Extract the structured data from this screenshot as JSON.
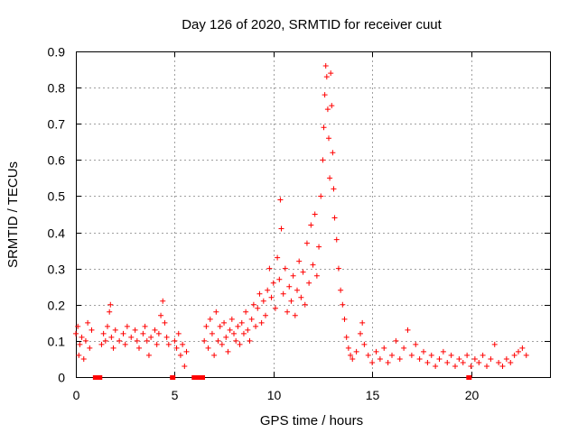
{
  "chart_data": {
    "type": "scatter",
    "title": "Day 126 of 2020, SRMTID for receiver cuut",
    "xlabel": "GPS time / hours",
    "ylabel": "SRMTID / TECUs",
    "xlim": [
      0,
      24
    ],
    "ylim": [
      0,
      0.9
    ],
    "x_ticks": [
      0,
      5,
      10,
      15,
      20
    ],
    "y_ticks": [
      0,
      0.1,
      0.2,
      0.3,
      0.4,
      0.5,
      0.6,
      0.7,
      0.8,
      0.9
    ],
    "x_tick_labels": [
      "0",
      "5",
      "10",
      "15",
      "20"
    ],
    "y_tick_labels": [
      "0",
      "0.1",
      "0.2",
      "0.3",
      "0.4",
      "0.5",
      "0.6",
      "0.7",
      "0.8",
      "0.9"
    ],
    "grid": true,
    "marker": "+",
    "color": "#ff0000",
    "series": [
      {
        "name": "SRMTID",
        "points": [
          [
            0.0,
            0.12
          ],
          [
            0.1,
            0.14
          ],
          [
            0.15,
            0.06
          ],
          [
            0.2,
            0.09
          ],
          [
            0.3,
            0.11
          ],
          [
            0.4,
            0.05
          ],
          [
            0.5,
            0.1
          ],
          [
            0.6,
            0.15
          ],
          [
            0.7,
            0.08
          ],
          [
            0.8,
            0.13
          ],
          [
            1.3,
            0.09
          ],
          [
            1.4,
            0.12
          ],
          [
            1.5,
            0.1
          ],
          [
            1.6,
            0.14
          ],
          [
            1.7,
            0.18
          ],
          [
            1.75,
            0.2
          ],
          [
            1.8,
            0.11
          ],
          [
            1.9,
            0.08
          ],
          [
            2.0,
            0.13
          ],
          [
            2.2,
            0.1
          ],
          [
            2.4,
            0.12
          ],
          [
            2.5,
            0.09
          ],
          [
            2.6,
            0.14
          ],
          [
            2.8,
            0.11
          ],
          [
            3.0,
            0.13
          ],
          [
            3.1,
            0.1
          ],
          [
            3.2,
            0.08
          ],
          [
            3.4,
            0.12
          ],
          [
            3.5,
            0.14
          ],
          [
            3.6,
            0.1
          ],
          [
            3.7,
            0.06
          ],
          [
            3.8,
            0.11
          ],
          [
            4.0,
            0.13
          ],
          [
            4.1,
            0.09
          ],
          [
            4.2,
            0.12
          ],
          [
            4.3,
            0.17
          ],
          [
            4.4,
            0.21
          ],
          [
            4.5,
            0.15
          ],
          [
            4.6,
            0.11
          ],
          [
            4.7,
            0.09
          ],
          [
            5.0,
            0.1
          ],
          [
            5.1,
            0.08
          ],
          [
            5.2,
            0.12
          ],
          [
            5.3,
            0.06
          ],
          [
            5.4,
            0.09
          ],
          [
            5.5,
            0.03
          ],
          [
            5.6,
            0.07
          ],
          [
            6.5,
            0.1
          ],
          [
            6.6,
            0.14
          ],
          [
            6.7,
            0.08
          ],
          [
            6.8,
            0.16
          ],
          [
            6.9,
            0.12
          ],
          [
            7.0,
            0.06
          ],
          [
            7.1,
            0.18
          ],
          [
            7.2,
            0.1
          ],
          [
            7.3,
            0.14
          ],
          [
            7.4,
            0.09
          ],
          [
            7.5,
            0.15
          ],
          [
            7.6,
            0.11
          ],
          [
            7.7,
            0.07
          ],
          [
            7.8,
            0.13
          ],
          [
            7.9,
            0.16
          ],
          [
            8.0,
            0.12
          ],
          [
            8.1,
            0.1
          ],
          [
            8.2,
            0.14
          ],
          [
            8.3,
            0.09
          ],
          [
            8.4,
            0.15
          ],
          [
            8.5,
            0.12
          ],
          [
            8.6,
            0.18
          ],
          [
            8.7,
            0.13
          ],
          [
            8.8,
            0.1
          ],
          [
            8.9,
            0.16
          ],
          [
            9.0,
            0.2
          ],
          [
            9.1,
            0.14
          ],
          [
            9.2,
            0.19
          ],
          [
            9.3,
            0.23
          ],
          [
            9.4,
            0.15
          ],
          [
            9.5,
            0.21
          ],
          [
            9.6,
            0.17
          ],
          [
            9.7,
            0.24
          ],
          [
            9.8,
            0.3
          ],
          [
            9.9,
            0.22
          ],
          [
            10.0,
            0.26
          ],
          [
            10.1,
            0.19
          ],
          [
            10.2,
            0.33
          ],
          [
            10.3,
            0.27
          ],
          [
            10.35,
            0.49
          ],
          [
            10.4,
            0.41
          ],
          [
            10.5,
            0.23
          ],
          [
            10.6,
            0.3
          ],
          [
            10.7,
            0.18
          ],
          [
            10.8,
            0.25
          ],
          [
            10.9,
            0.21
          ],
          [
            11.0,
            0.28
          ],
          [
            11.1,
            0.17
          ],
          [
            11.2,
            0.24
          ],
          [
            11.3,
            0.32
          ],
          [
            11.4,
            0.22
          ],
          [
            11.5,
            0.29
          ],
          [
            11.6,
            0.2
          ],
          [
            11.7,
            0.37
          ],
          [
            11.8,
            0.26
          ],
          [
            11.9,
            0.42
          ],
          [
            12.0,
            0.31
          ],
          [
            12.1,
            0.45
          ],
          [
            12.2,
            0.28
          ],
          [
            12.3,
            0.36
          ],
          [
            12.4,
            0.5
          ],
          [
            12.5,
            0.6
          ],
          [
            12.55,
            0.69
          ],
          [
            12.6,
            0.78
          ],
          [
            12.65,
            0.86
          ],
          [
            12.7,
            0.83
          ],
          [
            12.75,
            0.74
          ],
          [
            12.8,
            0.66
          ],
          [
            12.85,
            0.55
          ],
          [
            12.9,
            0.84
          ],
          [
            12.95,
            0.75
          ],
          [
            13.0,
            0.62
          ],
          [
            13.05,
            0.52
          ],
          [
            13.1,
            0.44
          ],
          [
            13.2,
            0.38
          ],
          [
            13.3,
            0.3
          ],
          [
            13.4,
            0.24
          ],
          [
            13.5,
            0.2
          ],
          [
            13.6,
            0.16
          ],
          [
            13.7,
            0.11
          ],
          [
            13.8,
            0.08
          ],
          [
            13.9,
            0.06
          ],
          [
            14.0,
            0.05
          ],
          [
            14.2,
            0.07
          ],
          [
            14.4,
            0.12
          ],
          [
            14.5,
            0.15
          ],
          [
            14.6,
            0.09
          ],
          [
            14.8,
            0.06
          ],
          [
            15.0,
            0.04
          ],
          [
            15.2,
            0.07
          ],
          [
            15.4,
            0.05
          ],
          [
            15.6,
            0.08
          ],
          [
            15.8,
            0.04
          ],
          [
            16.0,
            0.06
          ],
          [
            16.2,
            0.1
          ],
          [
            16.4,
            0.05
          ],
          [
            16.6,
            0.08
          ],
          [
            16.8,
            0.13
          ],
          [
            17.0,
            0.06
          ],
          [
            17.2,
            0.09
          ],
          [
            17.4,
            0.05
          ],
          [
            17.6,
            0.07
          ],
          [
            17.8,
            0.04
          ],
          [
            18.0,
            0.06
          ],
          [
            18.2,
            0.03
          ],
          [
            18.4,
            0.05
          ],
          [
            18.6,
            0.07
          ],
          [
            18.8,
            0.04
          ],
          [
            19.0,
            0.06
          ],
          [
            19.2,
            0.03
          ],
          [
            19.4,
            0.05
          ],
          [
            19.6,
            0.04
          ],
          [
            19.8,
            0.06
          ],
          [
            20.0,
            0.03
          ],
          [
            20.2,
            0.05
          ],
          [
            20.4,
            0.04
          ],
          [
            20.6,
            0.06
          ],
          [
            20.8,
            0.03
          ],
          [
            21.0,
            0.05
          ],
          [
            21.2,
            0.09
          ],
          [
            21.4,
            0.04
          ],
          [
            21.6,
            0.03
          ],
          [
            21.8,
            0.05
          ],
          [
            22.0,
            0.04
          ],
          [
            22.2,
            0.06
          ],
          [
            22.4,
            0.07
          ],
          [
            22.6,
            0.08
          ],
          [
            22.8,
            0.06
          ]
        ]
      }
    ],
    "gap_markers": [
      1.0,
      1.1,
      1.2,
      4.9,
      6.0,
      6.1,
      6.2,
      6.3,
      6.4,
      19.9
    ]
  }
}
